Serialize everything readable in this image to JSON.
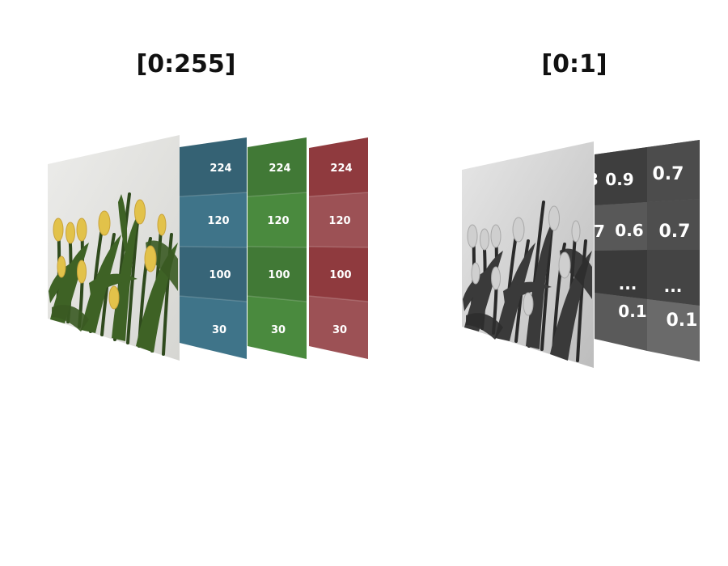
{
  "left": {
    "title": "[0:255]",
    "channels": [
      {
        "name": "blue",
        "color": "#3f7489",
        "values": [
          "224",
          "120",
          "100",
          "30"
        ]
      },
      {
        "name": "green",
        "color": "#4a8a3e",
        "values": [
          "224",
          "120",
          "100",
          "30"
        ]
      },
      {
        "name": "red",
        "color": "#8f3a3e",
        "values": [
          "224",
          "120",
          "100",
          "30"
        ]
      }
    ]
  },
  "right": {
    "title": "[0:1]",
    "grid": [
      [
        "3",
        "0.9",
        "0.7"
      ],
      [
        "7",
        "0.6",
        "0.7"
      ],
      [
        "",
        "...",
        "..."
      ],
      [
        "",
        "0.1",
        "0.1"
      ]
    ]
  }
}
